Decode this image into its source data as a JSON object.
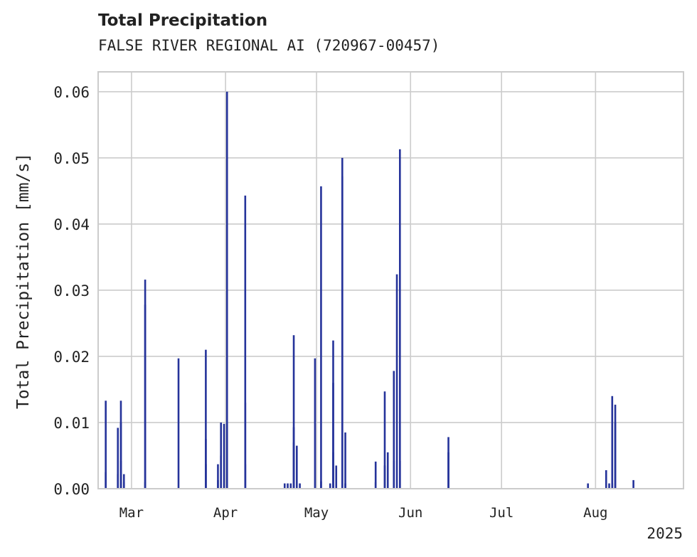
{
  "chart_data": {
    "type": "bar",
    "title": "Total Precipitation",
    "subtitle": "FALSE RIVER REGIONAL AI (720967-00457)",
    "xlabel": "",
    "ylabel": "Total Precipitation [mm/s]",
    "ylim": [
      0,
      0.063
    ],
    "xlim": [
      "2025-02-18",
      "2025-08-30"
    ],
    "yticks": [
      "0.00",
      "0.01",
      "0.02",
      "0.03",
      "0.04",
      "0.05",
      "0.06"
    ],
    "xticks": [
      {
        "date": "2025-03-01",
        "label": "Mar"
      },
      {
        "date": "2025-04-01",
        "label": "Apr"
      },
      {
        "date": "2025-05-01",
        "label": "May"
      },
      {
        "date": "2025-06-01",
        "label": "Jun"
      },
      {
        "date": "2025-07-01",
        "label": "Jul"
      },
      {
        "date": "2025-08-01",
        "label": "Aug"
      }
    ],
    "year_label": "2025",
    "grid": true,
    "bar_color": "#25339a",
    "series": [
      {
        "x": [
          "2025-02-20",
          "2025-02-20",
          "2025-02-24",
          "2025-02-24",
          "2025-02-25",
          "2025-02-25",
          "2025-02-25",
          "2025-02-26",
          "2025-02-26",
          "2025-03-05",
          "2025-03-05",
          "2025-03-05",
          "2025-03-16",
          "2025-03-25",
          "2025-03-25",
          "2025-03-25",
          "2025-03-29",
          "2025-03-29",
          "2025-03-30",
          "2025-03-30",
          "2025-03-31",
          "2025-04-01",
          "2025-04-01",
          "2025-04-07",
          "2025-04-07",
          "2025-04-07",
          "2025-04-20",
          "2025-04-21",
          "2025-04-22",
          "2025-04-23",
          "2025-04-23",
          "2025-04-23",
          "2025-04-24",
          "2025-04-25",
          "2025-04-30",
          "2025-05-02",
          "2025-05-02",
          "2025-05-05",
          "2025-05-06",
          "2025-05-06",
          "2025-05-06",
          "2025-05-07",
          "2025-05-09",
          "2025-05-09",
          "2025-05-10",
          "2025-05-10",
          "2025-05-20",
          "2025-05-20",
          "2025-05-23",
          "2025-05-23",
          "2025-05-24",
          "2025-05-26",
          "2025-05-26",
          "2025-05-27",
          "2025-05-28",
          "2025-05-28",
          "2025-06-13",
          "2025-06-13",
          "2025-07-29",
          "2025-08-04",
          "2025-08-05",
          "2025-08-06",
          "2025-08-06",
          "2025-08-07",
          "2025-08-07",
          "2025-08-13"
        ],
        "values": [
          0.0133,
          0.0025,
          0.0092,
          0.0022,
          0.0133,
          0.01,
          0.0042,
          0.0022,
          0.001,
          0.0316,
          0.0278,
          0.001,
          0.0197,
          0.0037,
          0.021,
          0.0075,
          0.0013,
          0.0037,
          0.005,
          0.01,
          0.0098,
          0.06,
          0.01,
          0.0037,
          0.0443,
          0.013,
          0.0008,
          0.0008,
          0.0008,
          0.007,
          0.0093,
          0.0232,
          0.0065,
          0.0008,
          0.0197,
          0.0457,
          0.0011,
          0.0008,
          0.0224,
          0.0055,
          0.016,
          0.0035,
          0.0472,
          0.05,
          0.0085,
          0.0008,
          0.0041,
          0.001,
          0.0147,
          0.0035,
          0.0055,
          0.0178,
          0.0042,
          0.0324,
          0.0513,
          0.0042,
          0.0078,
          0.0055,
          0.0008,
          0.0028,
          0.0008,
          0.014,
          0.0008,
          0.0127,
          0.01,
          0.0013
        ]
      }
    ]
  }
}
